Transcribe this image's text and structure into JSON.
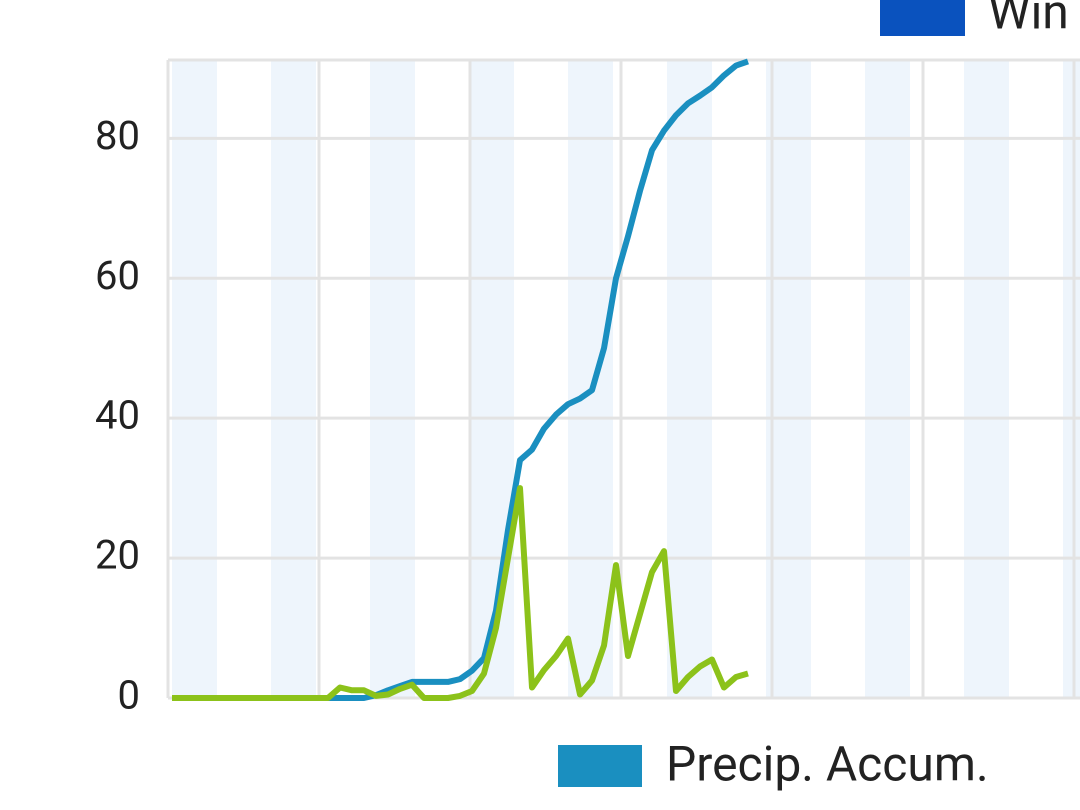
{
  "chart_data": {
    "type": "line",
    "legend": [
      {
        "name": "Win",
        "color": "#0a52be"
      },
      {
        "name": "Precip. Accum.",
        "color": "#1a8fc0"
      }
    ],
    "series": [
      {
        "color": "#1a8fc0",
        "values": [
          0,
          0,
          0,
          0,
          0,
          0,
          0,
          0,
          0,
          0,
          0,
          0,
          0,
          0,
          0,
          0,
          0,
          0.4,
          1.1,
          1.7,
          2.3,
          2.3,
          2.3,
          2.3,
          2.7,
          3.9,
          5.7,
          12.5,
          24,
          34,
          35.5,
          38.5,
          40.5,
          42,
          42.8,
          44,
          50,
          60,
          66,
          72.5,
          78.3,
          81.1,
          83.3,
          85,
          86.1,
          87.3,
          89,
          90.4,
          91
        ]
      },
      {
        "color": "#8cc21a",
        "values": [
          0,
          0,
          0,
          0,
          0,
          0,
          0,
          0,
          0,
          0,
          0,
          0,
          0,
          0,
          1.5,
          1.1,
          1.1,
          0.3,
          0.5,
          1.3,
          1.9,
          0,
          0,
          0,
          0.3,
          1,
          3.5,
          10,
          20,
          30,
          1.5,
          4,
          6,
          8.5,
          0.5,
          2.5,
          7.5,
          19,
          6,
          12,
          18,
          21,
          1,
          3,
          4.5,
          5.5,
          1.5,
          3,
          3.5
        ]
      }
    ],
    "ylim": [
      0,
      91.2
    ],
    "yticks": [
      0,
      20,
      40,
      60,
      80
    ],
    "grid": true
  }
}
